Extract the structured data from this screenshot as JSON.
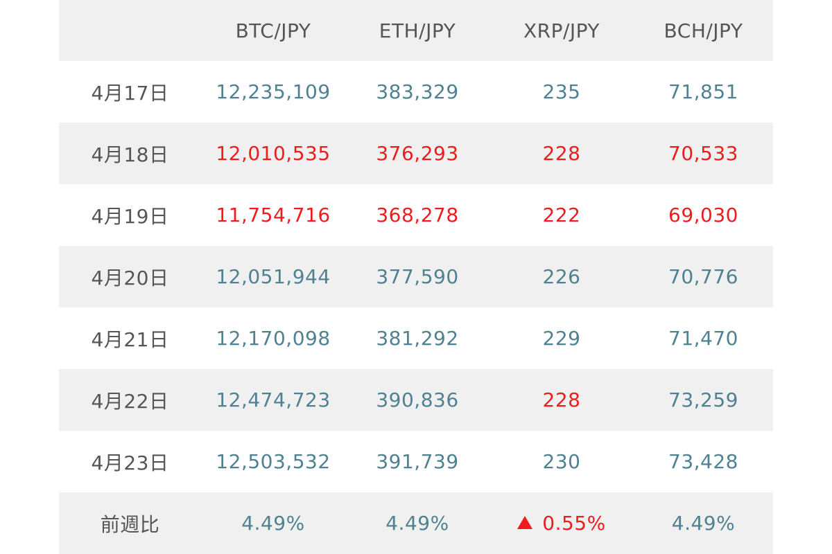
{
  "colors": {
    "normal_value": "#4f8191",
    "down_value": "#ee1c1c",
    "label": "#555555",
    "stripe": "#f0f0f0"
  },
  "headers": [
    "",
    "BTC/JPY",
    "ETH/JPY",
    "XRP/JPY",
    "BCH/JPY"
  ],
  "rows": [
    {
      "date": "4月17日",
      "values": [
        "12,235,109",
        "383,329",
        "235",
        "71,851"
      ],
      "down": [
        false,
        false,
        false,
        false
      ]
    },
    {
      "date": "4月18日",
      "values": [
        "12,010,535",
        "376,293",
        "228",
        "70,533"
      ],
      "down": [
        true,
        true,
        true,
        true
      ]
    },
    {
      "date": "4月19日",
      "values": [
        "11,754,716",
        "368,278",
        "222",
        "69,030"
      ],
      "down": [
        true,
        true,
        true,
        true
      ]
    },
    {
      "date": "4月20日",
      "values": [
        "12,051,944",
        "377,590",
        "226",
        "70,776"
      ],
      "down": [
        false,
        false,
        false,
        false
      ]
    },
    {
      "date": "4月21日",
      "values": [
        "12,170,098",
        "381,292",
        "229",
        "71,470"
      ],
      "down": [
        false,
        false,
        false,
        false
      ]
    },
    {
      "date": "4月22日",
      "values": [
        "12,474,723",
        "390,836",
        "228",
        "73,259"
      ],
      "down": [
        false,
        false,
        true,
        false
      ]
    },
    {
      "date": "4月23日",
      "values": [
        "12,503,532",
        "391,739",
        "230",
        "73,428"
      ],
      "down": [
        false,
        false,
        false,
        false
      ]
    }
  ],
  "footer": {
    "label": "前週比",
    "values": [
      "4.49%",
      "4.49%",
      "0.55%",
      "4.49%"
    ],
    "down": [
      false,
      false,
      true,
      false
    ],
    "down_icon": "triangle-up-icon"
  }
}
